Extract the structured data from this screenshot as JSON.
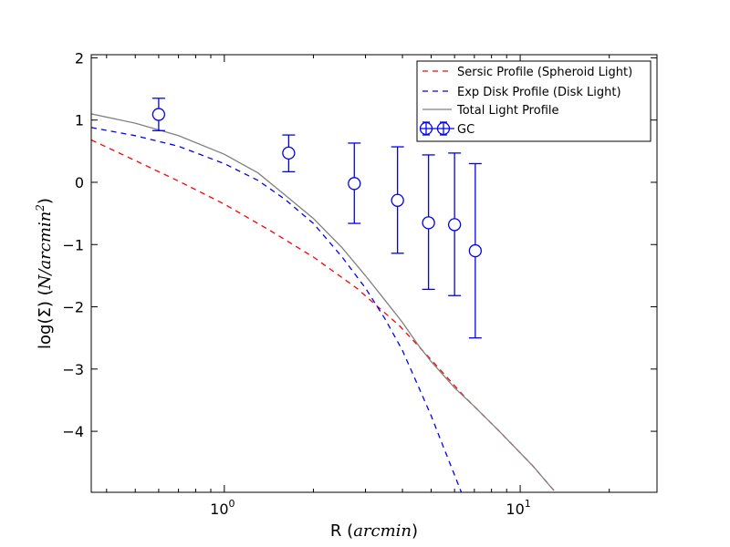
{
  "chart_data": {
    "type": "scatter",
    "xlabel_prefix": "R (",
    "xlabel_math": "arcmin",
    "xlabel_suffix": ")",
    "ylabel_prefix": "log(Σ) (",
    "ylabel_math": "N/arcmin",
    "ylabel_sup": "2",
    "ylabel_suffix": ")",
    "x_scale": "log",
    "xlim": [
      0.355,
      29
    ],
    "ylim": [
      -4.98,
      2.05
    ],
    "y_ticks": [
      2,
      1,
      0,
      -1,
      -2,
      -3,
      -4
    ],
    "y_tick_labels": [
      "2",
      "1",
      "0",
      "−1",
      "−2",
      "−3",
      "−4"
    ],
    "x_ticks": [
      1,
      10
    ],
    "x_tick_base": "10",
    "x_tick_exps": [
      "0",
      "1"
    ],
    "legend_position": "top-right",
    "grid": false,
    "series": [
      {
        "name": "Sersic Profile (Spheroid Light)",
        "kind": "line",
        "color": "#ff0000",
        "style": "dashed",
        "x": [
          0.355,
          0.5,
          0.7,
          1.0,
          1.4,
          2.0,
          2.8,
          3.9,
          5.0,
          6.5,
          8.5,
          11.0,
          13.0
        ],
        "y": [
          0.68,
          0.35,
          0.02,
          -0.35,
          -0.75,
          -1.2,
          -1.7,
          -2.3,
          -2.85,
          -3.45,
          -4.0,
          -4.55,
          -4.95
        ]
      },
      {
        "name": "Exp Disk Profile (Disk Light)",
        "kind": "line",
        "color": "#0000ff",
        "style": "dashed",
        "x": [
          0.355,
          0.5,
          0.7,
          1.0,
          1.3,
          1.6,
          2.0,
          2.5,
          3.0,
          3.5,
          4.0,
          4.5,
          5.0,
          5.5,
          6.0,
          6.35
        ],
        "y": [
          0.88,
          0.75,
          0.58,
          0.3,
          0.03,
          -0.27,
          -0.66,
          -1.2,
          -1.7,
          -2.2,
          -2.7,
          -3.25,
          -3.75,
          -4.25,
          -4.7,
          -5.0
        ]
      },
      {
        "name": "Total Light Profile",
        "kind": "line",
        "color": "#808080",
        "style": "solid",
        "x": [
          0.355,
          0.5,
          0.7,
          1.0,
          1.3,
          1.6,
          2.0,
          2.5,
          3.0,
          3.5,
          4.0,
          4.5,
          5.0,
          6.0,
          7.0,
          8.5,
          11.0,
          13.0
        ],
        "y": [
          1.1,
          0.95,
          0.75,
          0.45,
          0.15,
          -0.2,
          -0.58,
          -1.05,
          -1.5,
          -1.9,
          -2.25,
          -2.6,
          -2.88,
          -3.3,
          -3.6,
          -4.0,
          -4.55,
          -4.95
        ]
      },
      {
        "name": "GC",
        "kind": "errorbar",
        "color": "#0000ff",
        "x": [
          0.6,
          1.65,
          2.75,
          3.85,
          4.9,
          6.0,
          7.05
        ],
        "y": [
          1.09,
          0.47,
          -0.02,
          -0.29,
          -0.65,
          -0.68,
          -1.1
        ],
        "yerr_low": [
          0.26,
          0.3,
          0.64,
          0.85,
          1.07,
          1.14,
          1.4
        ],
        "yerr_high": [
          0.26,
          0.29,
          0.65,
          0.86,
          1.09,
          1.15,
          1.4
        ]
      }
    ]
  }
}
